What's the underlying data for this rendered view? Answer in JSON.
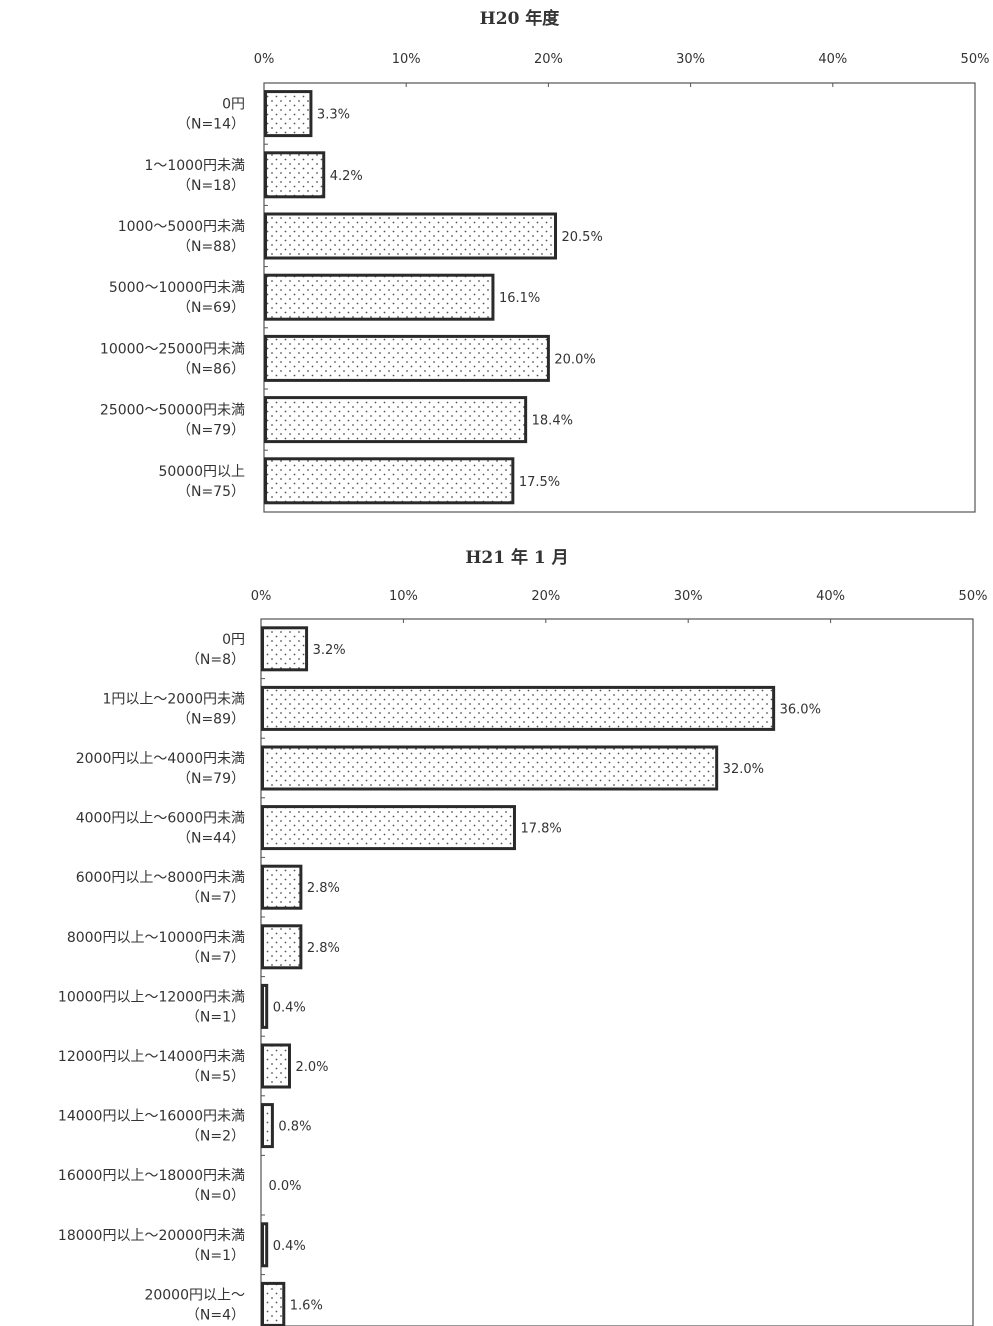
{
  "chart_data": [
    {
      "type": "bar",
      "orientation": "horizontal",
      "title": "H20 年度",
      "xlim": [
        0,
        50
      ],
      "x_ticks": [
        "0%",
        "10%",
        "20%",
        "30%",
        "40%",
        "50%"
      ],
      "categories": [
        [
          "0円",
          "（N=14）"
        ],
        [
          "1～1000円未満",
          "（N=18）"
        ],
        [
          "1000～5000円未満",
          "（N=88）"
        ],
        [
          "5000～10000円未満",
          "（N=69）"
        ],
        [
          "10000～25000円未満",
          "（N=86）"
        ],
        [
          "25000～50000円未満",
          "（N=79）"
        ],
        [
          "50000円以上",
          "（N=75）"
        ]
      ],
      "values": [
        3.3,
        4.2,
        20.5,
        16.1,
        20.0,
        18.4,
        17.5
      ],
      "value_labels": [
        "3.3%",
        "4.2%",
        "20.5%",
        "16.1%",
        "20.0%",
        "18.4%",
        "17.5%"
      ],
      "grid": false,
      "legend": "none"
    },
    {
      "type": "bar",
      "orientation": "horizontal",
      "title": "H21 年 1 月",
      "xlim": [
        0,
        50
      ],
      "x_ticks": [
        "0%",
        "10%",
        "20%",
        "30%",
        "40%",
        "50%"
      ],
      "categories": [
        [
          "0円",
          "（N=8）"
        ],
        [
          "1円以上～2000円未満",
          "（N=89）"
        ],
        [
          "2000円以上～4000円未満",
          "（N=79）"
        ],
        [
          "4000円以上～6000円未満",
          "（N=44）"
        ],
        [
          "6000円以上～8000円未満",
          "（N=7）"
        ],
        [
          "8000円以上～10000円未満",
          "（N=7）"
        ],
        [
          "10000円以上～12000円未満",
          "（N=1）"
        ],
        [
          "12000円以上～14000円未満",
          "（N=5）"
        ],
        [
          "14000円以上～16000円未満",
          "（N=2）"
        ],
        [
          "16000円以上～18000円未満",
          "（N=0）"
        ],
        [
          "18000円以上～20000円未満",
          "（N=1）"
        ],
        [
          "20000円以上～",
          "（N=4）"
        ]
      ],
      "values": [
        3.2,
        36.0,
        32.0,
        17.8,
        2.8,
        2.8,
        0.4,
        2.0,
        0.8,
        0.0,
        0.4,
        1.6
      ],
      "value_labels": [
        "3.2%",
        "36.0%",
        "32.0%",
        "17.8%",
        "2.8%",
        "2.8%",
        "0.4%",
        "2.0%",
        "0.8%",
        "0.0%",
        "0.4%",
        "1.6%"
      ],
      "grid": false,
      "legend": "none"
    }
  ]
}
